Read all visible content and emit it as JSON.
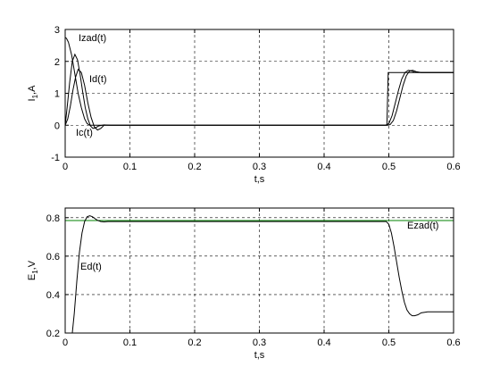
{
  "chart_data": [
    {
      "type": "line",
      "xlabel": "t,s",
      "ylabel": "I",
      "ylabel_subscript": "1",
      "ylabel_suffix": ",A",
      "xlim": [
        0,
        0.6
      ],
      "ylim": [
        -1,
        3
      ],
      "xticks": [
        "0",
        "0.1",
        "0.2",
        "0.3",
        "0.4",
        "0.5",
        "0.6"
      ],
      "yticks": [
        "-1",
        "0",
        "1",
        "2",
        "3"
      ],
      "grid": true,
      "series": [
        {
          "name": "Izad(t)",
          "color": "#000000",
          "x": [
            0,
            0.002,
            0.005,
            0.01,
            0.015,
            0.02,
            0.025,
            0.03,
            0.034,
            0.038,
            0.04,
            0.05,
            0.39,
            0.497,
            0.499,
            0.5,
            0.6
          ],
          "y": [
            2.75,
            2.72,
            2.6,
            2.2,
            1.6,
            1.0,
            0.55,
            0.2,
            0.05,
            0.0,
            0.0,
            0.0,
            0.0,
            0.0,
            1.65,
            1.65,
            1.65
          ]
        },
        {
          "name": "Id(t)",
          "color": "#000000",
          "x": [
            0,
            0.003,
            0.007,
            0.011,
            0.015,
            0.019,
            0.023,
            0.027,
            0.031,
            0.035,
            0.039,
            0.043,
            0.047,
            0.052,
            0.06,
            0.07,
            0.085,
            0.39,
            0.495,
            0.5,
            0.505,
            0.51,
            0.515,
            0.52,
            0.525,
            0.53,
            0.535,
            0.54,
            0.55,
            0.57,
            0.6
          ],
          "y": [
            0,
            0.55,
            1.35,
            2.0,
            2.22,
            2.05,
            1.6,
            1.05,
            0.55,
            0.2,
            -0.02,
            -0.1,
            -0.08,
            -0.02,
            0.01,
            0.0,
            0.0,
            0.0,
            0.0,
            0.05,
            0.3,
            0.7,
            1.1,
            1.45,
            1.65,
            1.72,
            1.7,
            1.66,
            1.65,
            1.65,
            1.65
          ]
        },
        {
          "name": "Ic(t)",
          "color": "#000000",
          "x": [
            0,
            0.004,
            0.008,
            0.012,
            0.016,
            0.02,
            0.025,
            0.03,
            0.035,
            0.04,
            0.045,
            0.05,
            0.055,
            0.06,
            0.07,
            0.39,
            0.498,
            0.502,
            0.507,
            0.512,
            0.517,
            0.522,
            0.527,
            0.532,
            0.537,
            0.542,
            0.55,
            0.57,
            0.6
          ],
          "y": [
            0,
            0.2,
            0.6,
            1.1,
            1.5,
            1.75,
            1.65,
            1.25,
            0.7,
            0.25,
            -0.05,
            -0.15,
            -0.1,
            0.0,
            0.0,
            0.0,
            0.0,
            0.02,
            0.15,
            0.45,
            0.85,
            1.25,
            1.55,
            1.7,
            1.72,
            1.68,
            1.65,
            1.65,
            1.65
          ]
        }
      ],
      "annotations": [
        "Izad(t)",
        "Id(t)",
        "Ic(t)"
      ]
    },
    {
      "type": "line",
      "xlabel": "t,s",
      "ylabel": "E",
      "ylabel_subscript": "1",
      "ylabel_suffix": ",V",
      "xlim": [
        0,
        0.6
      ],
      "ylim": [
        0.2,
        0.85
      ],
      "xticks": [
        "0",
        "0.1",
        "0.2",
        "0.3",
        "0.4",
        "0.5",
        "0.6"
      ],
      "yticks": [
        "0.2",
        "0.4",
        "0.6",
        "0.8"
      ],
      "grid": true,
      "series": [
        {
          "name": "Ezad(t)",
          "color": "#008000",
          "x": [
            0,
            0.6
          ],
          "y": [
            0.785,
            0.785
          ]
        },
        {
          "name": "Ed(t)",
          "color": "#000000",
          "x": [
            0.011,
            0.014,
            0.018,
            0.022,
            0.026,
            0.03,
            0.034,
            0.038,
            0.042,
            0.046,
            0.05,
            0.055,
            0.06,
            0.066,
            0.08,
            0.15,
            0.3,
            0.49,
            0.496,
            0.5,
            0.504,
            0.508,
            0.512,
            0.516,
            0.52,
            0.524,
            0.528,
            0.532,
            0.536,
            0.54,
            0.545,
            0.55,
            0.56,
            0.58,
            0.6
          ],
          "y": [
            0.2,
            0.3,
            0.47,
            0.62,
            0.72,
            0.78,
            0.805,
            0.81,
            0.805,
            0.795,
            0.786,
            0.78,
            0.778,
            0.78,
            0.78,
            0.78,
            0.78,
            0.78,
            0.78,
            0.765,
            0.72,
            0.65,
            0.57,
            0.49,
            0.42,
            0.36,
            0.32,
            0.3,
            0.29,
            0.29,
            0.295,
            0.305,
            0.31,
            0.31,
            0.31
          ]
        }
      ],
      "annotations": [
        "Ezad(t)",
        "Ed(t)"
      ]
    }
  ]
}
